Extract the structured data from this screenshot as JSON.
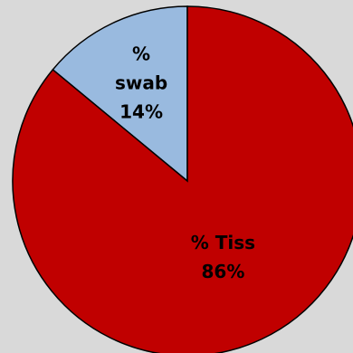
{
  "chart_data": {
    "type": "pie",
    "slices": [
      {
        "label_lines": [
          "%",
          "swab",
          "14%"
        ],
        "value": 14,
        "color": "#99badf"
      },
      {
        "label_lines": [
          "% Tiss",
          "86%"
        ],
        "value": 86,
        "color": "#c00000"
      }
    ],
    "background": "#d9d9d9",
    "outline_color": "#000000"
  }
}
